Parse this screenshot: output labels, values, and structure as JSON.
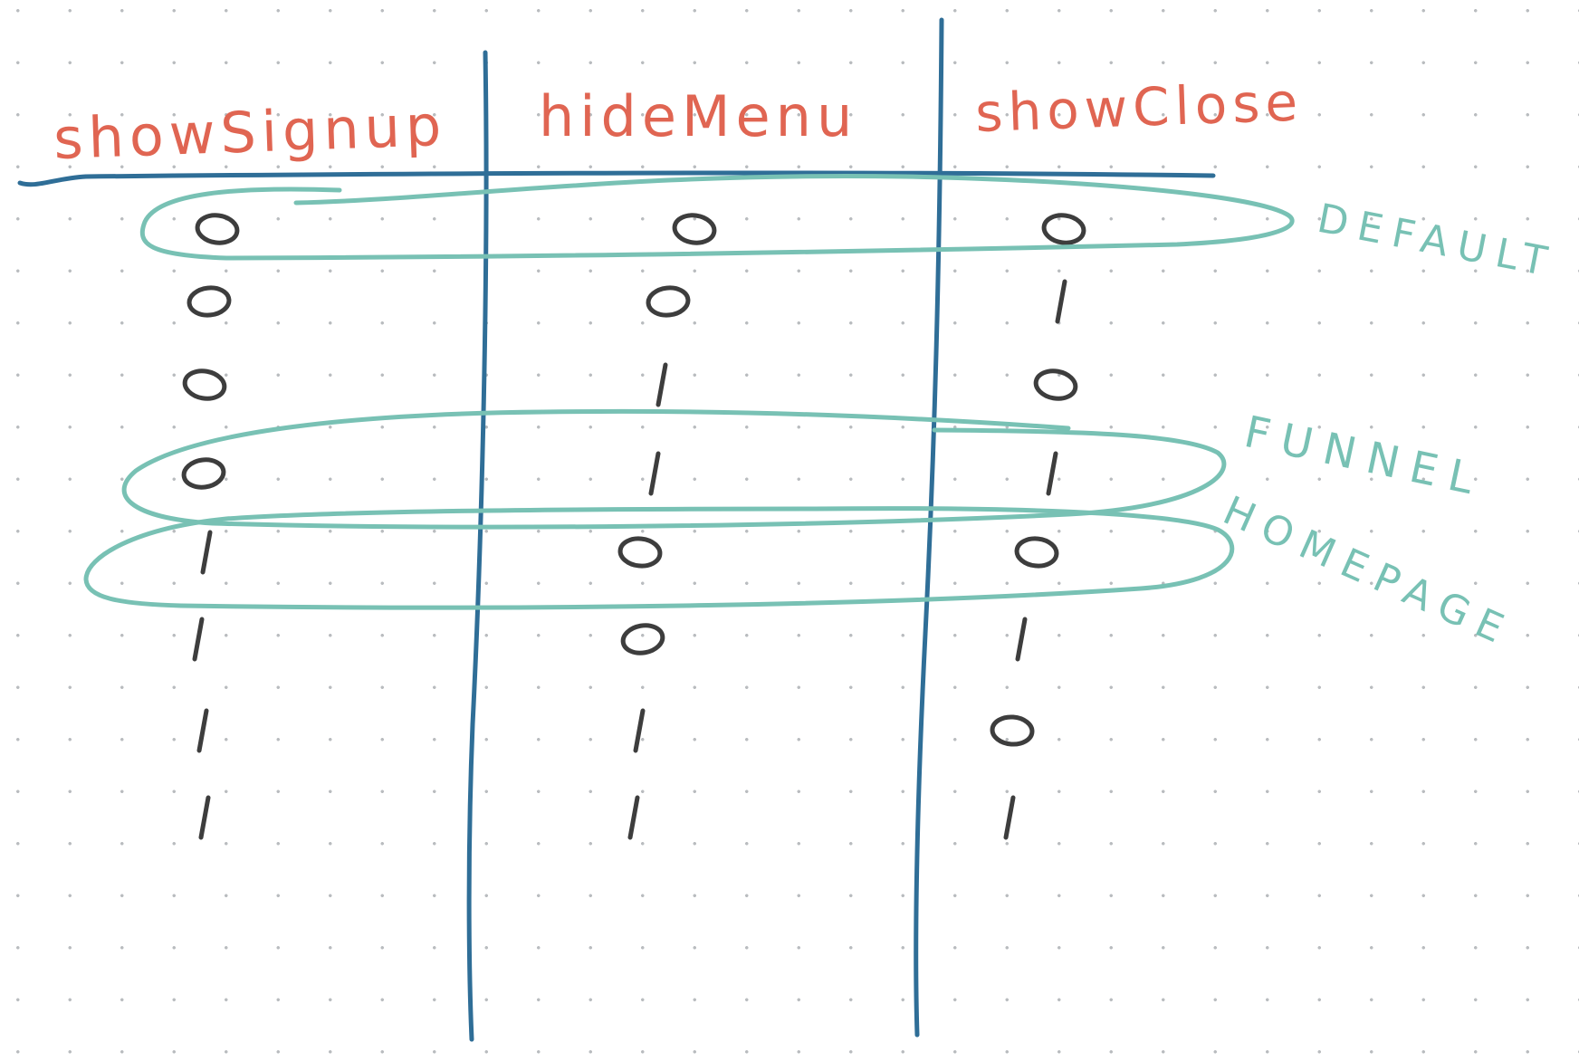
{
  "colors": {
    "header_text": "#e06552",
    "grid_lines": "#2f6e97",
    "groups": "#78c1b4",
    "marks": "#3d3d3d",
    "background": "#ffffff"
  },
  "columns": [
    {
      "label": "showSignup",
      "states": [
        "on",
        "on",
        "on",
        "on",
        "off",
        "off",
        "off",
        "off"
      ]
    },
    {
      "label": "hideMenu",
      "states": [
        "on",
        "on",
        "off",
        "off",
        "on",
        "on",
        "off",
        "off"
      ]
    },
    {
      "label": "showClose",
      "states": [
        "on",
        "off",
        "on",
        "off",
        "on",
        "off",
        "on",
        "off"
      ]
    }
  ],
  "groups": [
    {
      "label": "DEFAULT"
    },
    {
      "label": "FUNNEL"
    },
    {
      "label": "HOMEPAGE"
    }
  ]
}
